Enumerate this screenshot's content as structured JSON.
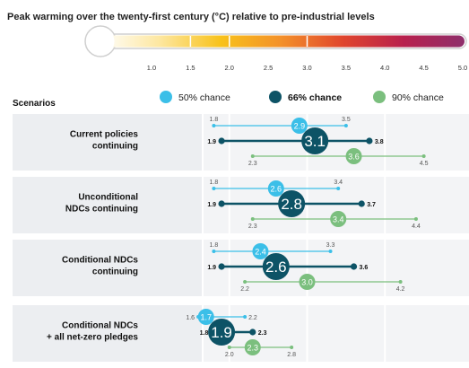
{
  "chart_data": {
    "type": "range-dot",
    "title": "Peak warming over the twenty-first century (°C) relative to pre-industrial levels",
    "axis": {
      "min": 1.0,
      "max": 5.0,
      "ticks": [
        "1.0",
        "1.5",
        "2.0",
        "2.5",
        "3.0",
        "3.5",
        "4.0",
        "4.5",
        "5.0"
      ]
    },
    "row_header": "Scenarios",
    "legend": [
      {
        "key": "p50",
        "label": "50% chance",
        "color": "#3bbfe8"
      },
      {
        "key": "p66",
        "label": "66% chance",
        "color": "#0d5366"
      },
      {
        "key": "p90",
        "label": "90% chance",
        "color": "#7bbf7e"
      }
    ],
    "scenarios": [
      {
        "label": [
          "Current policies",
          "continuing"
        ],
        "p50": {
          "value": 2.9,
          "low": 1.8,
          "high": 3.5,
          "low_label": "1.8",
          "high_label": "3.5",
          "value_label": "2.9"
        },
        "p66": {
          "value": 3.1,
          "low": 1.9,
          "high": 3.8,
          "low_label": "1.9",
          "high_label": "3.8",
          "value_label": "3.1"
        },
        "p90": {
          "value": 3.6,
          "low": 2.3,
          "high": 4.5,
          "low_label": "2.3",
          "high_label": "4.5",
          "value_label": "3.6"
        }
      },
      {
        "label": [
          "Unconditional",
          "NDCs continuing"
        ],
        "p50": {
          "value": 2.6,
          "low": 1.8,
          "high": 3.4,
          "low_label": "1.8",
          "high_label": "3.4",
          "value_label": "2.6"
        },
        "p66": {
          "value": 2.8,
          "low": 1.9,
          "high": 3.7,
          "low_label": "1.9",
          "high_label": "3.7",
          "value_label": "2.8"
        },
        "p90": {
          "value": 3.4,
          "low": 2.3,
          "high": 4.4,
          "low_label": "2.3",
          "high_label": "4.4",
          "value_label": "3.4"
        }
      },
      {
        "label": [
          "Conditional NDCs",
          "continuing"
        ],
        "p50": {
          "value": 2.4,
          "low": 1.8,
          "high": 3.3,
          "low_label": "1.8",
          "high_label": "3.3",
          "value_label": "2.4"
        },
        "p66": {
          "value": 2.6,
          "low": 1.9,
          "high": 3.6,
          "low_label": "1.9",
          "high_label": "3.6",
          "value_label": "2.6"
        },
        "p90": {
          "value": 3.0,
          "low": 2.2,
          "high": 4.2,
          "low_label": "2.2",
          "high_label": "4.2",
          "value_label": "3.0"
        }
      },
      {
        "label": [
          "Conditional NDCs",
          "+ all net-zero pledges"
        ],
        "p50": {
          "value": 1.7,
          "low": 1.6,
          "high": 2.2,
          "low_label": "1.6",
          "high_label": "2.2",
          "value_label": "1.7"
        },
        "p66": {
          "value": 1.9,
          "low": 1.8,
          "high": 2.3,
          "low_label": "1.8",
          "high_label": "2.3",
          "value_label": "1.9"
        },
        "p90": {
          "value": 2.3,
          "low": 2.0,
          "high": 2.8,
          "low_label": "2.0",
          "high_label": "2.8",
          "value_label": "2.3"
        }
      }
    ],
    "thermometer_gradient": [
      "#ffffff",
      "#fde7a0",
      "#f8c21b",
      "#f3902a",
      "#e0462d",
      "#b8204d",
      "#8e2f6b"
    ],
    "thermometer_markers": [
      1.5,
      2.0,
      3.0
    ]
  }
}
